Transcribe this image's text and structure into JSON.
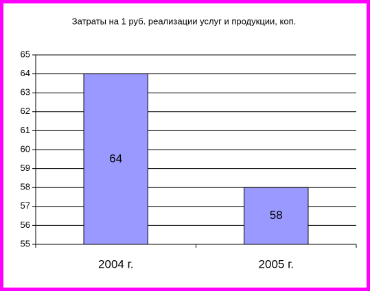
{
  "chart_data": {
    "type": "bar",
    "title": "Затраты на 1 руб. реализации услуг и продукции, коп.",
    "categories": [
      "2004 г.",
      "2005 г."
    ],
    "values": [
      64,
      58
    ],
    "color": "#9999ff",
    "ylim": [
      55,
      65
    ],
    "yticks": [
      55,
      56,
      57,
      58,
      59,
      60,
      61,
      62,
      63,
      64,
      65
    ],
    "grid": true
  }
}
